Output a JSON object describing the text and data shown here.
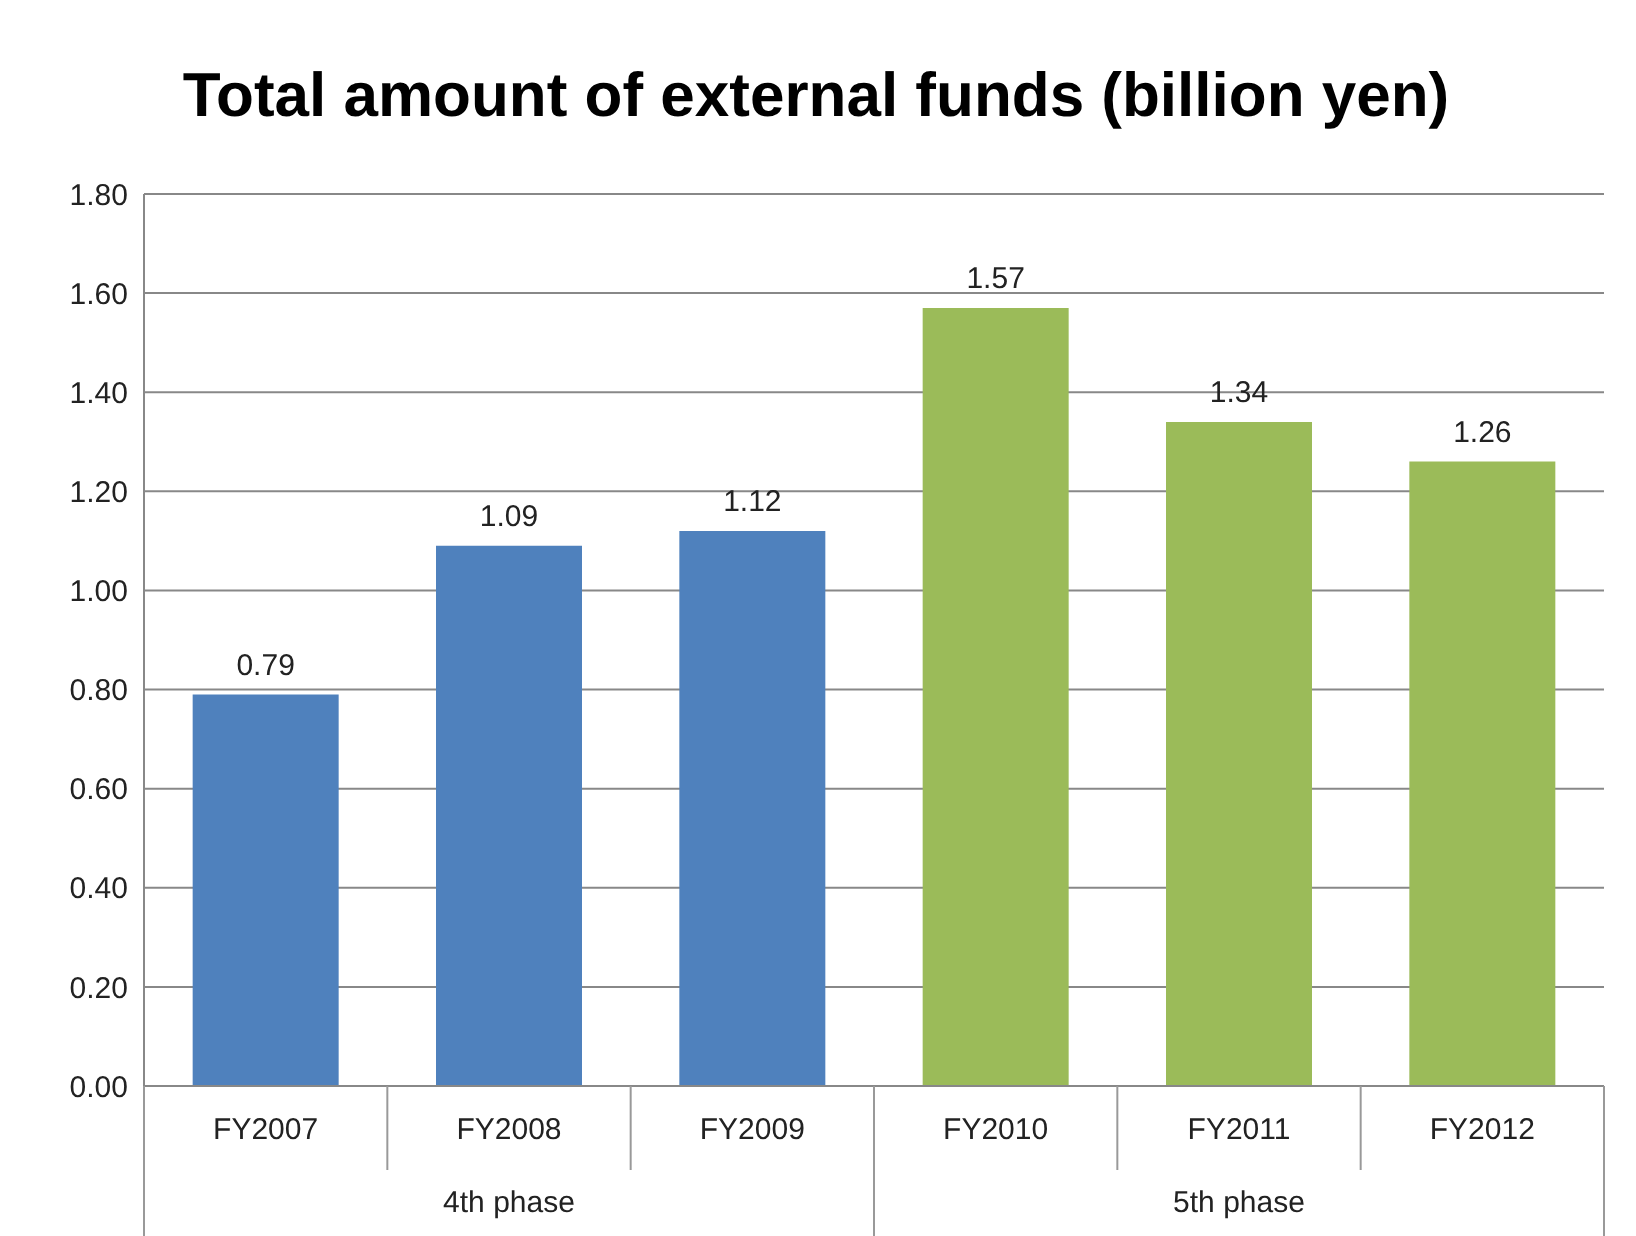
{
  "chart_data": {
    "type": "bar",
    "title": "Total amount of external funds (billion yen)",
    "categories": [
      "FY2007",
      "FY2008",
      "FY2009",
      "FY2010",
      "FY2011",
      "FY2012"
    ],
    "values": [
      0.79,
      1.09,
      1.12,
      1.57,
      1.34,
      1.26
    ],
    "colors": [
      "#4f81bd",
      "#4f81bd",
      "#4f81bd",
      "#9bbb59",
      "#9bbb59",
      "#9bbb59"
    ],
    "ylim": [
      0,
      1.8
    ],
    "yticks": [
      {
        "value": 0,
        "label": "0.00"
      },
      {
        "value": 0.2,
        "label": "0.20"
      },
      {
        "value": 0.4,
        "label": "0.40"
      },
      {
        "value": 0.6,
        "label": "0.60"
      },
      {
        "value": 0.8,
        "label": "0.80"
      },
      {
        "value": 1,
        "label": "1.00"
      },
      {
        "value": 1.2,
        "label": "1.20"
      },
      {
        "value": 1.4,
        "label": "1.40"
      },
      {
        "value": 1.6,
        "label": "1.60"
      },
      {
        "value": 1.8,
        "label": "1.80"
      }
    ],
    "grid": "y",
    "data_labels": true,
    "annotations": [
      "4th phase",
      "5th phase"
    ]
  }
}
